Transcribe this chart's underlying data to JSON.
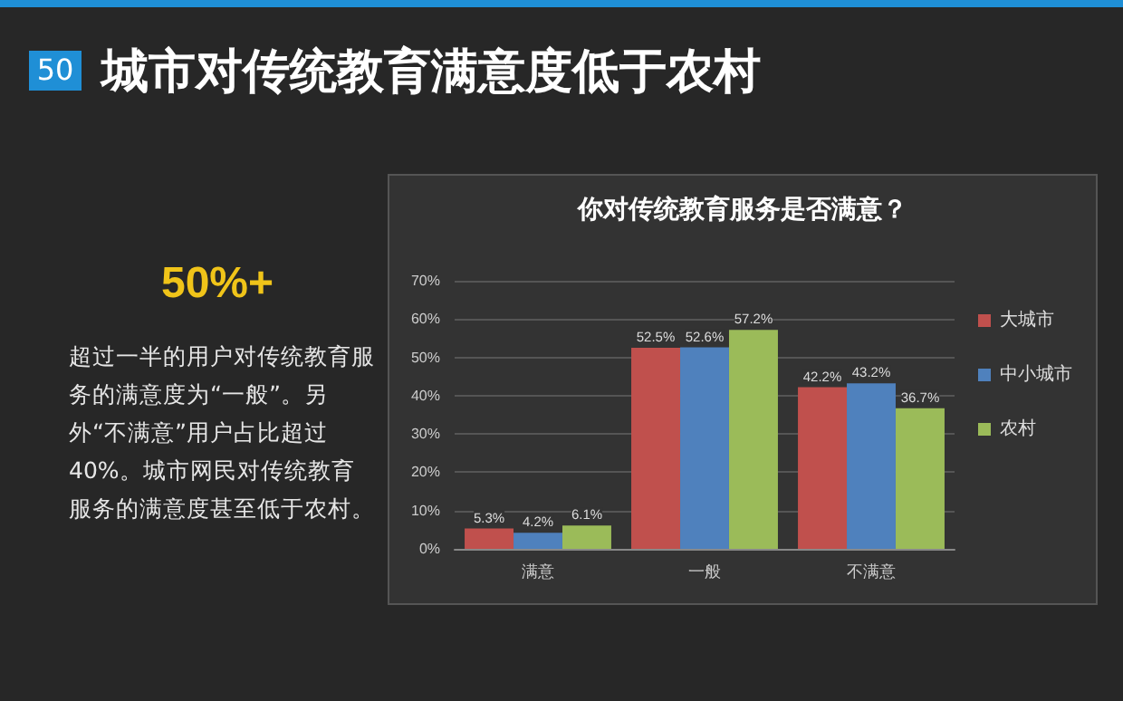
{
  "chart_data": {
    "type": "bar",
    "title": "城市对传统教育满意度低于农村",
    "subtitle": "你对传统教育服务是否满意？",
    "annotations": [
      "50",
      "50%+",
      "超过一半的用户对传统教育服务的满意度为“一般”。另外“不满意”用户占比超过40%。城市网民对传统教育服务的满意度甚至低于农村。"
    ],
    "categories": [
      "满意",
      "一般",
      "不满意"
    ],
    "series": [
      {
        "name": "大城市",
        "color": "#c0504d",
        "values": [
          5.3,
          52.5,
          42.2
        ],
        "value_labels": [
          "5.3%",
          "52.5%",
          "42.2%"
        ]
      },
      {
        "name": "中小城市",
        "color": "#4f81bd",
        "values": [
          4.2,
          52.6,
          43.2
        ],
        "value_labels": [
          "4.2%",
          "52.6%",
          "43.2%"
        ]
      },
      {
        "name": "农村",
        "color": "#9bbb59",
        "values": [
          6.1,
          57.2,
          36.7
        ],
        "value_labels": [
          "6.1%",
          "57.2%",
          "36.7%"
        ]
      }
    ],
    "ylim": [
      0,
      70
    ],
    "yticks": [
      {
        "value": 0,
        "label": "0%"
      },
      {
        "value": 10,
        "label": "10%"
      },
      {
        "value": 20,
        "label": "20%"
      },
      {
        "value": 30,
        "label": "30%"
      },
      {
        "value": 40,
        "label": "40%"
      },
      {
        "value": 50,
        "label": "50%"
      },
      {
        "value": 60,
        "label": "60%"
      },
      {
        "value": 70,
        "label": "70%"
      }
    ],
    "grid": true,
    "legend": "right"
  }
}
